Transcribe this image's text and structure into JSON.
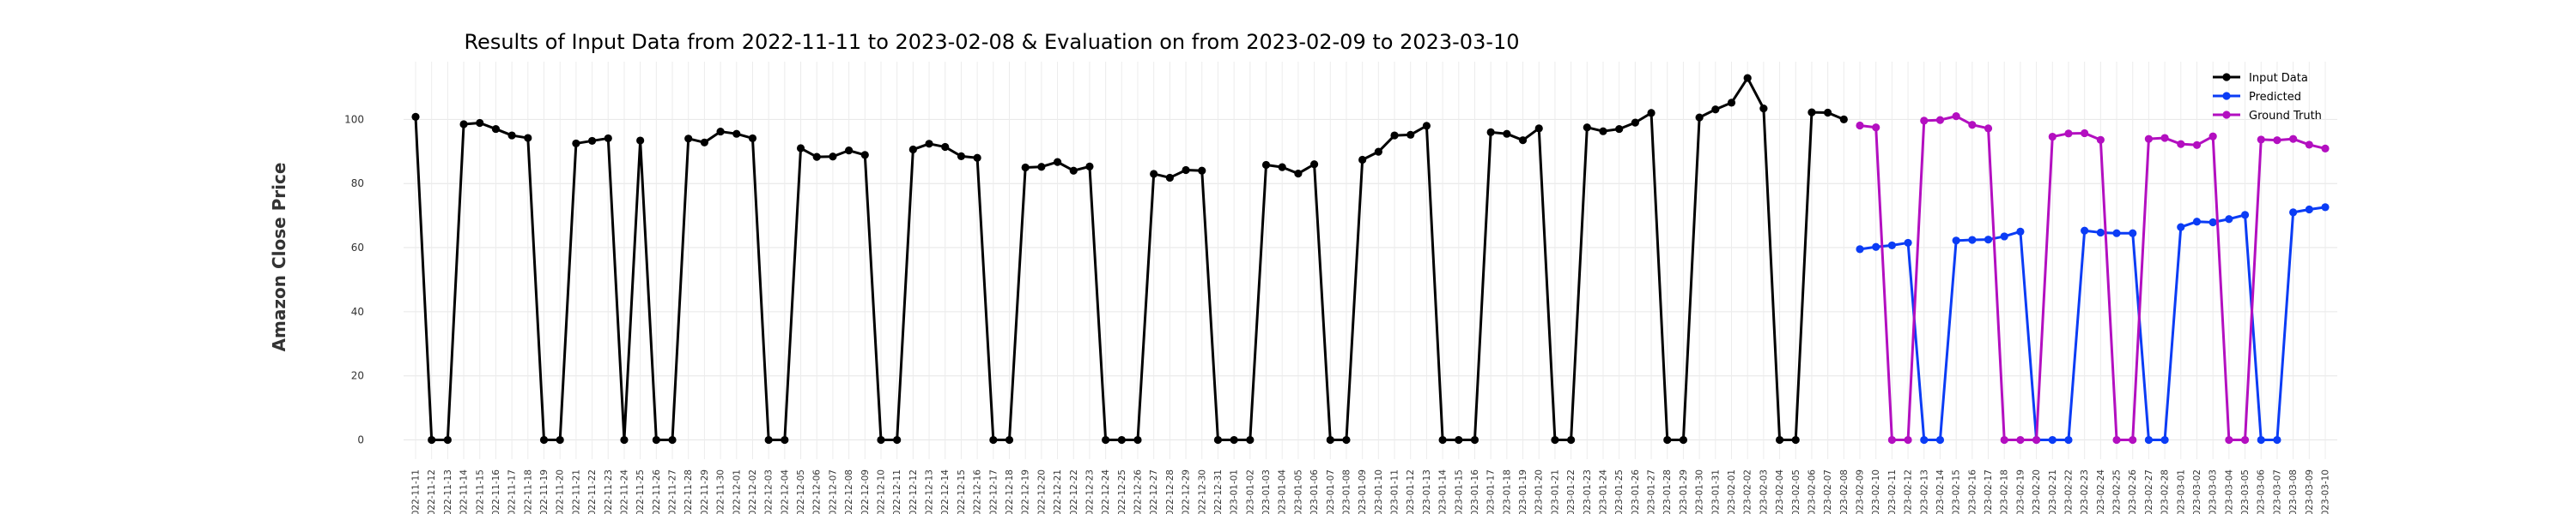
{
  "chart_data": {
    "type": "line",
    "title": "Results of Input Data from 2022-11-11 to 2023-02-08 & Evaluation on from 2023-02-09 to 2023-03-10",
    "ylabel": "Amazon Close Price",
    "xlabel": "",
    "ylim": [
      -6,
      118
    ],
    "yticks": [
      0,
      20,
      40,
      60,
      80,
      100
    ],
    "grid": true,
    "legend_position": "top-right",
    "input_x": [
      "2022-11-11",
      "2022-11-12",
      "2022-11-13",
      "2022-11-14",
      "2022-11-15",
      "2022-11-16",
      "2022-11-17",
      "2022-11-18",
      "2022-11-19",
      "2022-11-20",
      "2022-11-21",
      "2022-11-22",
      "2022-11-23",
      "2022-11-24",
      "2022-11-25",
      "2022-11-26",
      "2022-11-27",
      "2022-11-28",
      "2022-11-29",
      "2022-11-30",
      "2022-12-01",
      "2022-12-02",
      "2022-12-03",
      "2022-12-04",
      "2022-12-05",
      "2022-12-06",
      "2022-12-07",
      "2022-12-08",
      "2022-12-09",
      "2022-12-10",
      "2022-12-11",
      "2022-12-12",
      "2022-12-13",
      "2022-12-14",
      "2022-12-15",
      "2022-12-16",
      "2022-12-17",
      "2022-12-18",
      "2022-12-19",
      "2022-12-20",
      "2022-12-21",
      "2022-12-22",
      "2022-12-23",
      "2022-12-24",
      "2022-12-25",
      "2022-12-26",
      "2022-12-27",
      "2022-12-28",
      "2022-12-29",
      "2022-12-30",
      "2022-12-31",
      "2023-01-01",
      "2023-01-02",
      "2023-01-03",
      "2023-01-04",
      "2023-01-05",
      "2023-01-06",
      "2023-01-07",
      "2023-01-08",
      "2023-01-09",
      "2023-01-10",
      "2023-01-11",
      "2023-01-12",
      "2023-01-13",
      "2023-01-14",
      "2023-01-15",
      "2023-01-16",
      "2023-01-17",
      "2023-01-18",
      "2023-01-19",
      "2023-01-20",
      "2023-01-21",
      "2023-01-22",
      "2023-01-23",
      "2023-01-24",
      "2023-01-25",
      "2023-01-26",
      "2023-01-27",
      "2023-01-28",
      "2023-01-29",
      "2023-01-30",
      "2023-01-31",
      "2023-02-01",
      "2023-02-02",
      "2023-02-03",
      "2023-02-04",
      "2023-02-05",
      "2023-02-06",
      "2023-02-07",
      "2023-02-08"
    ],
    "input_values": [
      100.8,
      0,
      0,
      98.5,
      98.9,
      97.0,
      95.0,
      94.2,
      0,
      0,
      92.5,
      93.3,
      94.1,
      0,
      93.4,
      0,
      0,
      94.0,
      92.8,
      96.2,
      95.5,
      94.1,
      0,
      0,
      91.0,
      88.3,
      88.4,
      90.3,
      88.9,
      0,
      0,
      90.6,
      92.4,
      91.4,
      88.5,
      88.0,
      0,
      0,
      85.0,
      85.2,
      86.7,
      84.0,
      85.3,
      0,
      0,
      0,
      83.0,
      81.8,
      84.2,
      84.0,
      0,
      0,
      0,
      85.8,
      85.1,
      83.1,
      86.0,
      0,
      0,
      87.4,
      89.9,
      95.0,
      95.2,
      98.0,
      0,
      0,
      0,
      96.0,
      95.5,
      93.5,
      97.2,
      0,
      0,
      97.5,
      96.3,
      97.0,
      99.0,
      102.0,
      0,
      0,
      100.6,
      103.1,
      105.2,
      112.9,
      103.4,
      0,
      0,
      102.2,
      102.1,
      100.0
    ],
    "eval_x": [
      "2023-02-09",
      "2023-02-10",
      "2023-02-11",
      "2023-02-12",
      "2023-02-13",
      "2023-02-14",
      "2023-02-15",
      "2023-02-16",
      "2023-02-17",
      "2023-02-18",
      "2023-02-19",
      "2023-02-20",
      "2023-02-21",
      "2023-02-22",
      "2023-02-23",
      "2023-02-24",
      "2023-02-25",
      "2023-02-26",
      "2023-02-27",
      "2023-02-28",
      "2023-03-01",
      "2023-03-02",
      "2023-03-03",
      "2023-03-04",
      "2023-03-05",
      "2023-03-06",
      "2023-03-07",
      "2023-03-08",
      "2023-03-09",
      "2023-03-10"
    ],
    "series": [
      {
        "name": "Input Data",
        "color": "#000000"
      },
      {
        "name": "Predicted",
        "color": "#0b3cf5",
        "values": [
          59.5,
          60.2,
          60.7,
          61.5,
          0,
          0,
          62.2,
          62.4,
          62.5,
          63.5,
          65.0,
          0,
          0,
          0,
          65.3,
          64.7,
          64.5,
          64.5,
          0,
          0,
          66.4,
          68.1,
          67.9,
          68.9,
          70.2,
          0,
          0,
          71.0,
          71.9,
          72.6
        ]
      },
      {
        "name": "Ground Truth",
        "color": "#b30fc0",
        "values": [
          98.1,
          97.5,
          0,
          0,
          99.6,
          99.8,
          101.0,
          98.3,
          97.2,
          0,
          0,
          0,
          94.6,
          95.6,
          95.7,
          93.6,
          0,
          0,
          93.9,
          94.2,
          92.3,
          92.0,
          94.7,
          0,
          0,
          93.7,
          93.5,
          93.9,
          92.1,
          90.9
        ]
      }
    ]
  }
}
